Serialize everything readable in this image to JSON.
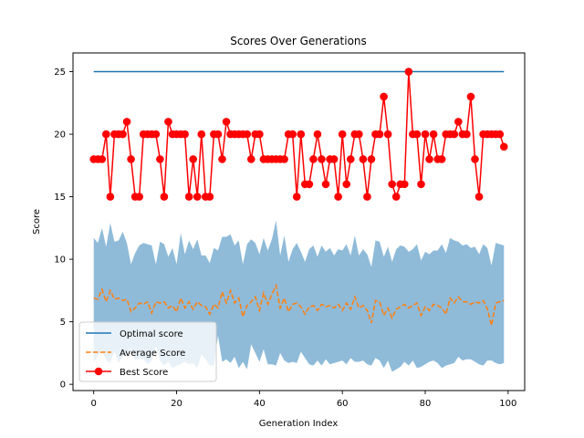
{
  "chart_data": {
    "type": "line",
    "title": "Scores Over Generations",
    "xlabel": "Generation Index",
    "ylabel": "Score",
    "xlim": [
      -5,
      104
    ],
    "ylim": [
      -0.5,
      26.5
    ],
    "xticks": [
      0,
      20,
      40,
      60,
      80,
      100
    ],
    "yticks": [
      0,
      5,
      10,
      15,
      20,
      25
    ],
    "grid": false,
    "legend_position": "lower-left",
    "x": [
      0,
      1,
      2,
      3,
      4,
      5,
      6,
      7,
      8,
      9,
      10,
      11,
      12,
      13,
      14,
      15,
      16,
      17,
      18,
      19,
      20,
      21,
      22,
      23,
      24,
      25,
      26,
      27,
      28,
      29,
      30,
      31,
      32,
      33,
      34,
      35,
      36,
      37,
      38,
      39,
      40,
      41,
      42,
      43,
      44,
      45,
      46,
      47,
      48,
      49,
      50,
      51,
      52,
      53,
      54,
      55,
      56,
      57,
      58,
      59,
      60,
      61,
      62,
      63,
      64,
      65,
      66,
      67,
      68,
      69,
      70,
      71,
      72,
      73,
      74,
      75,
      76,
      77,
      78,
      79,
      80,
      81,
      82,
      83,
      84,
      85,
      86,
      87,
      88,
      89,
      90,
      91,
      92,
      93,
      94,
      95,
      96,
      97,
      98,
      99
    ],
    "series": [
      {
        "name": "Optimal score",
        "style": "solid",
        "color": "#1f77b4",
        "values": [
          25,
          25,
          25,
          25,
          25,
          25,
          25,
          25,
          25,
          25,
          25,
          25,
          25,
          25,
          25,
          25,
          25,
          25,
          25,
          25,
          25,
          25,
          25,
          25,
          25,
          25,
          25,
          25,
          25,
          25,
          25,
          25,
          25,
          25,
          25,
          25,
          25,
          25,
          25,
          25,
          25,
          25,
          25,
          25,
          25,
          25,
          25,
          25,
          25,
          25,
          25,
          25,
          25,
          25,
          25,
          25,
          25,
          25,
          25,
          25,
          25,
          25,
          25,
          25,
          25,
          25,
          25,
          25,
          25,
          25,
          25,
          25,
          25,
          25,
          25,
          25,
          25,
          25,
          25,
          25,
          25,
          25,
          25,
          25,
          25,
          25,
          25,
          25,
          25,
          25,
          25,
          25,
          25,
          25,
          25,
          25,
          25,
          25,
          25,
          25
        ]
      },
      {
        "name": "Average Score",
        "style": "dashed",
        "color": "#ff7f0e",
        "values": [
          6.9,
          6.8,
          7.6,
          6.6,
          7.5,
          6.8,
          6.9,
          6.7,
          6.8,
          5.8,
          6.1,
          6.5,
          6.4,
          6.6,
          5.7,
          6.6,
          6.5,
          6.6,
          6.1,
          6.3,
          5.8,
          6.9,
          6.1,
          6.6,
          6.0,
          6.6,
          6.3,
          6.2,
          5.6,
          6.4,
          6.1,
          7.4,
          6.5,
          7.5,
          6.5,
          6.9,
          5.4,
          6.3,
          6.6,
          7.0,
          5.9,
          7.3,
          6.4,
          7.2,
          7.9,
          6.1,
          6.9,
          5.8,
          6.4,
          6.5,
          6.2,
          5.6,
          6.2,
          6.3,
          5.9,
          6.4,
          6.2,
          6.3,
          6.1,
          6.4,
          5.9,
          6.5,
          6.0,
          7.0,
          6.1,
          6.3,
          5.9,
          4.9,
          6.7,
          6.6,
          5.5,
          6.1,
          5.3,
          6.0,
          6.2,
          6.4,
          6.1,
          6.3,
          6.5,
          5.5,
          6.2,
          5.9,
          6.4,
          6.3,
          6.1,
          5.6,
          6.9,
          6.5,
          7.0,
          6.6,
          6.6,
          6.4,
          6.6,
          6.5,
          6.7,
          6.0,
          4.7,
          6.5,
          6.6,
          6.7
        ]
      },
      {
        "name": "Best Score",
        "style": "solid-markers",
        "color": "#ff0000",
        "values": [
          18,
          18,
          18,
          20,
          15,
          20,
          20,
          20,
          21,
          18,
          15,
          15,
          20,
          20,
          20,
          20,
          18,
          15,
          21,
          20,
          20,
          20,
          20,
          15,
          18,
          15,
          20,
          15,
          15,
          20,
          20,
          18,
          21,
          20,
          20,
          20,
          20,
          20,
          18,
          20,
          20,
          18,
          18,
          18,
          18,
          18,
          18,
          20,
          20,
          15,
          20,
          16,
          16,
          18,
          20,
          18,
          16,
          18,
          18,
          15,
          20,
          16,
          18,
          20,
          20,
          18,
          15,
          18,
          20,
          20,
          23,
          20,
          16,
          15,
          16,
          16,
          25,
          20,
          20,
          16,
          20,
          18,
          20,
          18,
          18,
          20,
          20,
          20,
          21,
          20,
          20,
          23,
          18,
          15,
          20,
          20,
          20,
          20,
          20,
          19
        ]
      }
    ],
    "band": {
      "color": "#1f77b4",
      "opacity": 0.5,
      "upper": [
        11.7,
        11.3,
        12.5,
        11.0,
        12.9,
        11.4,
        11.5,
        12.2,
        11.3,
        9.6,
        10.5,
        11.1,
        11.3,
        11.2,
        11.1,
        9.6,
        11.4,
        11.2,
        10.2,
        10.9,
        9.6,
        12.1,
        10.4,
        11.5,
        10.8,
        11.6,
        10.3,
        10.3,
        9.7,
        10.9,
        10.7,
        11.8,
        11.8,
        12.0,
        11.1,
        11.5,
        9.6,
        11.2,
        11.6,
        11.3,
        10.4,
        11.7,
        10.7,
        11.6,
        13.1,
        10.3,
        11.9,
        9.8,
        10.8,
        11.3,
        10.6,
        9.8,
        10.8,
        11.1,
        10.2,
        11.1,
        10.6,
        10.9,
        10.3,
        10.8,
        10.7,
        11.2,
        10.3,
        11.9,
        10.3,
        10.8,
        10.4,
        9.4,
        11.5,
        11.4,
        10.2,
        11.0,
        9.8,
        10.8,
        11.1,
        11.0,
        10.6,
        10.8,
        11.2,
        9.9,
        10.6,
        10.4,
        10.7,
        10.7,
        11.2,
        10.5,
        11.7,
        11.5,
        11.4,
        11.1,
        11.2,
        10.9,
        11.0,
        10.4,
        11.2,
        10.9,
        9.5,
        11.3,
        11.2,
        11.1
      ],
      "lower": [
        1.7,
        2.3,
        2.7,
        1.9,
        1.7,
        2.7,
        1.7,
        2.2,
        2.3,
        2.9,
        1.9,
        2.1,
        2.0,
        1.6,
        1.9,
        3.1,
        1.9,
        1.5,
        1.8,
        1.3,
        1.5,
        1.6,
        1.8,
        1.6,
        1.7,
        1.3,
        2.4,
        2.0,
        1.5,
        1.5,
        3.9,
        1.8,
        2.0,
        1.7,
        2.2,
        1.3,
        1.8,
        1.2,
        3.2,
        2.5,
        1.8,
        2.8,
        1.6,
        1.6,
        1.5,
        2.5,
        1.9,
        1.7,
        1.8,
        1.7,
        2.6,
        2.1,
        1.6,
        1.5,
        1.9,
        1.5,
        2.0,
        1.6,
        1.7,
        1.8,
        1.9,
        1.6,
        2.1,
        1.8,
        1.8,
        1.9,
        1.6,
        1.5,
        2.1,
        1.9,
        1.3,
        1.9,
        1.0,
        1.2,
        1.4,
        1.8,
        1.5,
        1.9,
        1.3,
        1.4,
        1.6,
        1.8,
        1.9,
        1.7,
        1.3,
        1.5,
        1.6,
        1.7,
        2.2,
        1.9,
        2.0,
        2.0,
        1.8,
        1.6,
        1.5,
        1.9,
        1.9,
        1.7,
        1.6,
        1.7
      ]
    }
  }
}
